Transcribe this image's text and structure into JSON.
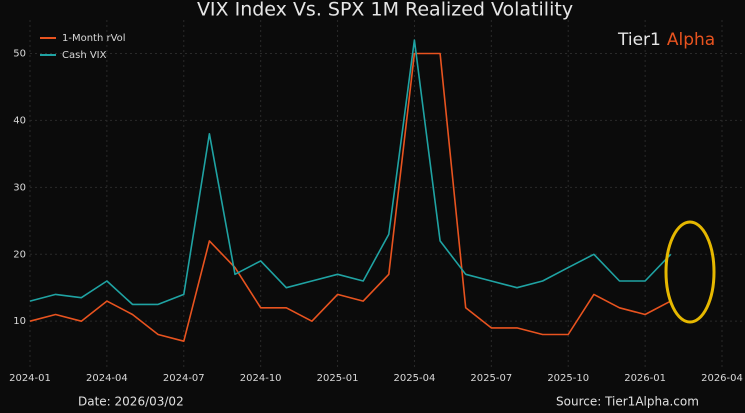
{
  "chart_data": {
    "type": "line",
    "title": "VIX Index Vs. SPX 1M Realized Volatility",
    "watermark": [
      "Tier1",
      "Alpha"
    ],
    "date_note": "Date: 2026/03/02",
    "source": "Source: Tier1Alpha.com",
    "x": [
      "2024-01",
      "2024-02",
      "2024-03",
      "2024-04",
      "2024-05",
      "2024-06",
      "2024-07",
      "2024-08",
      "2024-09",
      "2024-10",
      "2024-11",
      "2024-12",
      "2025-01",
      "2025-02",
      "2025-03",
      "2025-04",
      "2025-05",
      "2025-06",
      "2025-07",
      "2025-08",
      "2025-09",
      "2025-10",
      "2025-11",
      "2025-12",
      "2026-01",
      "2026-02"
    ],
    "series": [
      {
        "name": "1-Month rVol",
        "color": "#e8531f",
        "values": [
          10,
          11,
          10,
          13,
          11,
          8,
          7,
          22,
          18,
          12,
          12,
          10,
          14,
          13,
          17,
          50,
          50,
          12,
          9,
          9,
          8,
          8,
          14,
          12,
          11,
          13
        ]
      },
      {
        "name": "Cash VIX",
        "color": "#1fa3a3",
        "values": [
          13,
          14,
          13.5,
          16,
          12.5,
          12.5,
          14,
          38,
          17,
          19,
          15,
          16,
          17,
          16,
          23,
          52,
          22,
          17,
          16,
          15,
          16,
          18,
          20,
          16,
          16,
          20
        ]
      }
    ],
    "xlim": [
      "2024-01",
      "2026-04"
    ],
    "xticks": [
      "2024-01",
      "2024-04",
      "2024-07",
      "2024-10",
      "2025-01",
      "2025-04",
      "2025-07",
      "2025-10",
      "2026-01",
      "2026-04"
    ],
    "ylim": [
      3,
      58
    ],
    "yticks": [
      10,
      20,
      30,
      40,
      50
    ],
    "grid": true,
    "legend": "upper left"
  }
}
